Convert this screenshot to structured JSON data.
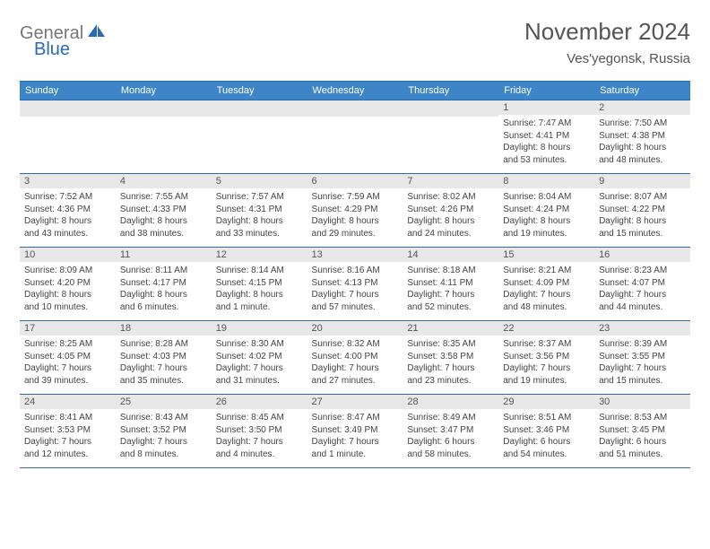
{
  "logo": {
    "text1": "General",
    "text2": "Blue",
    "color1": "#777777",
    "color2": "#2a6ab0"
  },
  "title": "November 2024",
  "location": "Ves'yegonsk, Russia",
  "colors": {
    "header_bg": "#3d85c6",
    "header_border": "#2a6ab0",
    "daynum_bg": "#e8e8e8",
    "text": "#444444"
  },
  "day_names": [
    "Sunday",
    "Monday",
    "Tuesday",
    "Wednesday",
    "Thursday",
    "Friday",
    "Saturday"
  ],
  "weeks": [
    [
      {
        "num": "",
        "lines": []
      },
      {
        "num": "",
        "lines": []
      },
      {
        "num": "",
        "lines": []
      },
      {
        "num": "",
        "lines": []
      },
      {
        "num": "",
        "lines": []
      },
      {
        "num": "1",
        "lines": [
          "Sunrise: 7:47 AM",
          "Sunset: 4:41 PM",
          "Daylight: 8 hours",
          "and 53 minutes."
        ]
      },
      {
        "num": "2",
        "lines": [
          "Sunrise: 7:50 AM",
          "Sunset: 4:38 PM",
          "Daylight: 8 hours",
          "and 48 minutes."
        ]
      }
    ],
    [
      {
        "num": "3",
        "lines": [
          "Sunrise: 7:52 AM",
          "Sunset: 4:36 PM",
          "Daylight: 8 hours",
          "and 43 minutes."
        ]
      },
      {
        "num": "4",
        "lines": [
          "Sunrise: 7:55 AM",
          "Sunset: 4:33 PM",
          "Daylight: 8 hours",
          "and 38 minutes."
        ]
      },
      {
        "num": "5",
        "lines": [
          "Sunrise: 7:57 AM",
          "Sunset: 4:31 PM",
          "Daylight: 8 hours",
          "and 33 minutes."
        ]
      },
      {
        "num": "6",
        "lines": [
          "Sunrise: 7:59 AM",
          "Sunset: 4:29 PM",
          "Daylight: 8 hours",
          "and 29 minutes."
        ]
      },
      {
        "num": "7",
        "lines": [
          "Sunrise: 8:02 AM",
          "Sunset: 4:26 PM",
          "Daylight: 8 hours",
          "and 24 minutes."
        ]
      },
      {
        "num": "8",
        "lines": [
          "Sunrise: 8:04 AM",
          "Sunset: 4:24 PM",
          "Daylight: 8 hours",
          "and 19 minutes."
        ]
      },
      {
        "num": "9",
        "lines": [
          "Sunrise: 8:07 AM",
          "Sunset: 4:22 PM",
          "Daylight: 8 hours",
          "and 15 minutes."
        ]
      }
    ],
    [
      {
        "num": "10",
        "lines": [
          "Sunrise: 8:09 AM",
          "Sunset: 4:20 PM",
          "Daylight: 8 hours",
          "and 10 minutes."
        ]
      },
      {
        "num": "11",
        "lines": [
          "Sunrise: 8:11 AM",
          "Sunset: 4:17 PM",
          "Daylight: 8 hours",
          "and 6 minutes."
        ]
      },
      {
        "num": "12",
        "lines": [
          "Sunrise: 8:14 AM",
          "Sunset: 4:15 PM",
          "Daylight: 8 hours",
          "and 1 minute."
        ]
      },
      {
        "num": "13",
        "lines": [
          "Sunrise: 8:16 AM",
          "Sunset: 4:13 PM",
          "Daylight: 7 hours",
          "and 57 minutes."
        ]
      },
      {
        "num": "14",
        "lines": [
          "Sunrise: 8:18 AM",
          "Sunset: 4:11 PM",
          "Daylight: 7 hours",
          "and 52 minutes."
        ]
      },
      {
        "num": "15",
        "lines": [
          "Sunrise: 8:21 AM",
          "Sunset: 4:09 PM",
          "Daylight: 7 hours",
          "and 48 minutes."
        ]
      },
      {
        "num": "16",
        "lines": [
          "Sunrise: 8:23 AM",
          "Sunset: 4:07 PM",
          "Daylight: 7 hours",
          "and 44 minutes."
        ]
      }
    ],
    [
      {
        "num": "17",
        "lines": [
          "Sunrise: 8:25 AM",
          "Sunset: 4:05 PM",
          "Daylight: 7 hours",
          "and 39 minutes."
        ]
      },
      {
        "num": "18",
        "lines": [
          "Sunrise: 8:28 AM",
          "Sunset: 4:03 PM",
          "Daylight: 7 hours",
          "and 35 minutes."
        ]
      },
      {
        "num": "19",
        "lines": [
          "Sunrise: 8:30 AM",
          "Sunset: 4:02 PM",
          "Daylight: 7 hours",
          "and 31 minutes."
        ]
      },
      {
        "num": "20",
        "lines": [
          "Sunrise: 8:32 AM",
          "Sunset: 4:00 PM",
          "Daylight: 7 hours",
          "and 27 minutes."
        ]
      },
      {
        "num": "21",
        "lines": [
          "Sunrise: 8:35 AM",
          "Sunset: 3:58 PM",
          "Daylight: 7 hours",
          "and 23 minutes."
        ]
      },
      {
        "num": "22",
        "lines": [
          "Sunrise: 8:37 AM",
          "Sunset: 3:56 PM",
          "Daylight: 7 hours",
          "and 19 minutes."
        ]
      },
      {
        "num": "23",
        "lines": [
          "Sunrise: 8:39 AM",
          "Sunset: 3:55 PM",
          "Daylight: 7 hours",
          "and 15 minutes."
        ]
      }
    ],
    [
      {
        "num": "24",
        "lines": [
          "Sunrise: 8:41 AM",
          "Sunset: 3:53 PM",
          "Daylight: 7 hours",
          "and 12 minutes."
        ]
      },
      {
        "num": "25",
        "lines": [
          "Sunrise: 8:43 AM",
          "Sunset: 3:52 PM",
          "Daylight: 7 hours",
          "and 8 minutes."
        ]
      },
      {
        "num": "26",
        "lines": [
          "Sunrise: 8:45 AM",
          "Sunset: 3:50 PM",
          "Daylight: 7 hours",
          "and 4 minutes."
        ]
      },
      {
        "num": "27",
        "lines": [
          "Sunrise: 8:47 AM",
          "Sunset: 3:49 PM",
          "Daylight: 7 hours",
          "and 1 minute."
        ]
      },
      {
        "num": "28",
        "lines": [
          "Sunrise: 8:49 AM",
          "Sunset: 3:47 PM",
          "Daylight: 6 hours",
          "and 58 minutes."
        ]
      },
      {
        "num": "29",
        "lines": [
          "Sunrise: 8:51 AM",
          "Sunset: 3:46 PM",
          "Daylight: 6 hours",
          "and 54 minutes."
        ]
      },
      {
        "num": "30",
        "lines": [
          "Sunrise: 8:53 AM",
          "Sunset: 3:45 PM",
          "Daylight: 6 hours",
          "and 51 minutes."
        ]
      }
    ]
  ]
}
